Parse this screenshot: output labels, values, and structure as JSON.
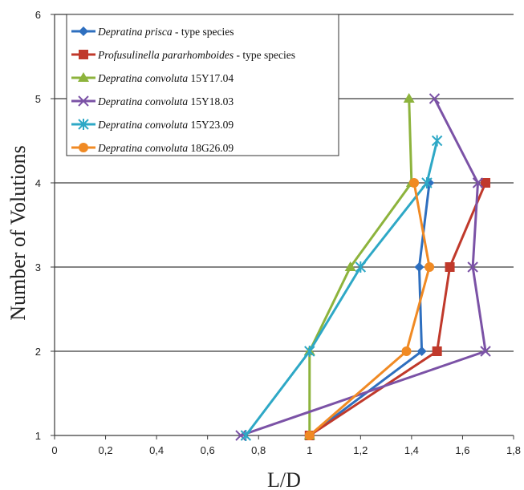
{
  "chart_data": {
    "type": "line",
    "title": "",
    "xlabel": "L/D",
    "ylabel": "Number of Volutions",
    "xlim": [
      0,
      1.8
    ],
    "ylim": [
      1,
      6
    ],
    "x_ticks": [
      "0",
      "0,2",
      "0,4",
      "0,6",
      "0,8",
      "1",
      "1,2",
      "1,4",
      "1,6",
      "1,8"
    ],
    "y_ticks": [
      "1",
      "2",
      "3",
      "4",
      "5",
      "6"
    ],
    "grid": "horizontal",
    "legend_position": "top-left",
    "series": [
      {
        "name_italic": "Depratina prisca",
        "name_rest": " - type species",
        "color": "#2E6FBF",
        "marker": "diamond",
        "points": [
          [
            1.0,
            1
          ],
          [
            1.44,
            2
          ],
          [
            1.43,
            3
          ],
          [
            1.47,
            4
          ]
        ]
      },
      {
        "name_italic": "Profusulinella pararhomboides",
        "name_rest": " - type species",
        "color": "#C0392B",
        "marker": "square",
        "points": [
          [
            1.0,
            1
          ],
          [
            1.5,
            2
          ],
          [
            1.55,
            3
          ],
          [
            1.69,
            4
          ]
        ]
      },
      {
        "name_italic": "Depratina convoluta",
        "name_rest": " 15Y17.04",
        "color": "#8DB33C",
        "marker": "triangle",
        "points": [
          [
            1.0,
            1
          ],
          [
            1.0,
            2
          ],
          [
            1.16,
            3
          ],
          [
            1.4,
            4
          ],
          [
            1.39,
            5
          ]
        ]
      },
      {
        "name_italic": "Depratina convoluta",
        "name_rest": " 15Y18.03",
        "color": "#7B52A6",
        "marker": "x",
        "points": [
          [
            0.73,
            1
          ],
          [
            1.69,
            2
          ],
          [
            1.64,
            3
          ],
          [
            1.66,
            4
          ],
          [
            1.49,
            5
          ]
        ]
      },
      {
        "name_italic": "Depratina convoluta",
        "name_rest": " 15Y23.09",
        "color": "#2EA8C6",
        "marker": "star",
        "points": [
          [
            0.75,
            1
          ],
          [
            1.0,
            2
          ],
          [
            1.2,
            3
          ],
          [
            1.46,
            4
          ],
          [
            1.5,
            4.5
          ]
        ]
      },
      {
        "name_italic": "Depratina convoluta",
        "name_rest": " 18G26.09",
        "color": "#F08A24",
        "marker": "circle",
        "points": [
          [
            1.0,
            1
          ],
          [
            1.38,
            2
          ],
          [
            1.47,
            3
          ],
          [
            1.41,
            4
          ]
        ]
      }
    ]
  }
}
